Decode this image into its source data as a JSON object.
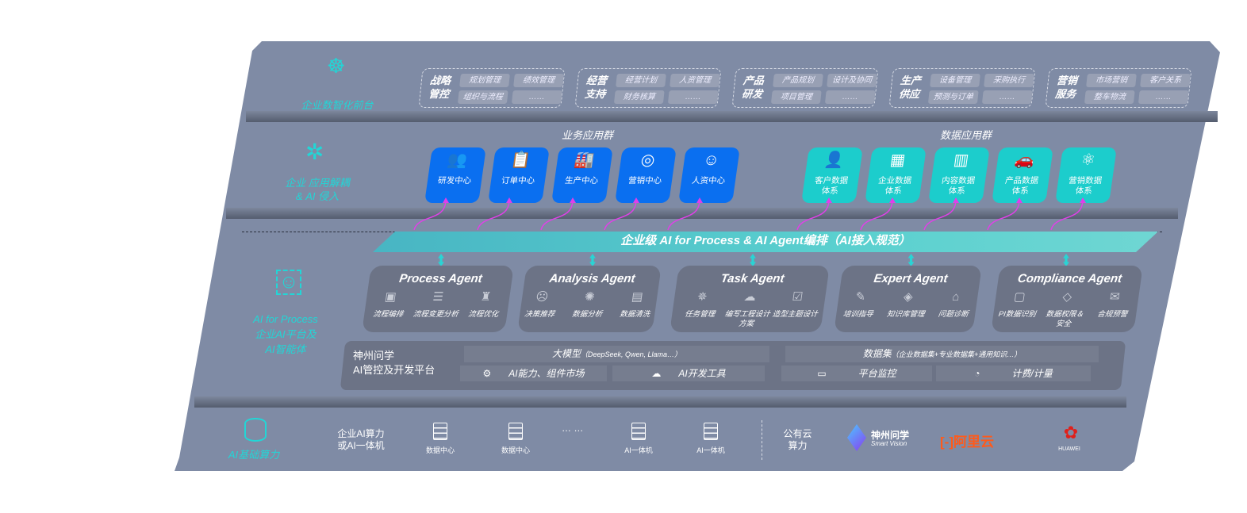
{
  "layers": {
    "frontend": {
      "label": "企业数智化前台",
      "icon": "brain-icon",
      "groups": [
        {
          "title": "战略管控",
          "items": [
            "规划管理",
            "绩效管理",
            "组织与流程",
            "……"
          ]
        },
        {
          "title": "经营支持",
          "items": [
            "经营计划",
            "人资管理",
            "财务核算",
            "……"
          ]
        },
        {
          "title": "产品研发",
          "items": [
            "产品规划",
            "设计及协同",
            "项目管理",
            "……"
          ]
        },
        {
          "title": "生产供应",
          "items": [
            "设备管理",
            "采购执行",
            "预测与订单",
            "……"
          ]
        },
        {
          "title": "营销服务",
          "items": [
            "市场营销",
            "客户关系",
            "整车物流",
            "……"
          ]
        }
      ]
    },
    "apps": {
      "label": "企业 应用解耦\n& AI 侵入",
      "icon": "molecule-icon",
      "business_title": "业务应用群",
      "business": [
        {
          "label": "研发中心",
          "icon": "team-icon"
        },
        {
          "label": "订单中心",
          "icon": "clipboard-icon"
        },
        {
          "label": "生产中心",
          "icon": "factory-icon"
        },
        {
          "label": "营销中心",
          "icon": "target-icon"
        },
        {
          "label": "人资中心",
          "icon": "person-icon"
        }
      ],
      "data_title": "数据应用群",
      "data": [
        {
          "label": "客户数据\n体系",
          "icon": "user-icon"
        },
        {
          "label": "企业数据\n体系",
          "icon": "building-icon"
        },
        {
          "label": "内容数据\n体系",
          "icon": "books-icon"
        },
        {
          "label": "产品数据\n体系",
          "icon": "car-icon"
        },
        {
          "label": "营销数据\n体系",
          "icon": "atom-icon"
        }
      ],
      "accent_blue": "#0a6ff0",
      "accent_teal": "#1ccdcc",
      "connector_color": "#e040e8"
    },
    "ai": {
      "label": "AI for Process\n企业AI平台及\nAI智能体",
      "icon": "face-scan-icon",
      "orchestration": "企业级 AI for Process & AI Agent编排（AI接入规范）",
      "agents": [
        {
          "title": "Process Agent",
          "items": [
            "流程编排",
            "流程变更分析",
            "流程优化"
          ]
        },
        {
          "title": "Analysis Agent",
          "items": [
            "决策推荐",
            "数据分析",
            "数据清洗"
          ]
        },
        {
          "title": "Task Agent",
          "items": [
            "任务管理",
            "编写工程设计方案",
            "造型主题设计"
          ]
        },
        {
          "title": "Expert Agent",
          "items": [
            "培训指导",
            "知识库管理",
            "问题诊断"
          ]
        },
        {
          "title": "Compliance Agent",
          "items": [
            "PI数据识别",
            "数据权限＆\n安全",
            "合规预警"
          ]
        }
      ],
      "platform": {
        "title": "神州问学\nAI管控及开发平台",
        "model": "大模型",
        "model_note": "（DeepSeek, Qwen, Llama…）",
        "dataset": "数据集",
        "dataset_note": "（企业数据集+专业数据集+通用知识…）",
        "tools": [
          "AI能力、组件市场",
          "AI开发工具",
          "平台监控",
          "计费/计量"
        ]
      }
    },
    "compute": {
      "label": "AI基础算力",
      "icon": "database-icon",
      "enterprise_label": "企业AI算力\n或AI一体机",
      "servers": [
        "数据中心",
        "数据中心",
        "AI一体机",
        "AI一体机"
      ],
      "ellipsis": "… …",
      "public_label": "公有云\n算力",
      "vendors": [
        "神州问学",
        "Smart Vision",
        "阿里云",
        "HUAWEI"
      ]
    }
  }
}
